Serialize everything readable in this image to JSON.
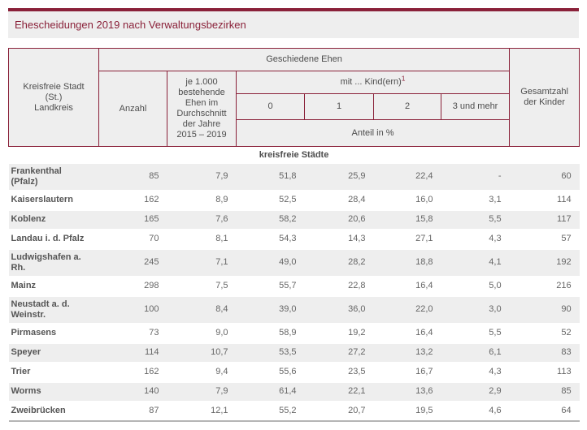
{
  "page": {
    "title": "Ehescheidungen 2019 nach Verwaltungsbezirken"
  },
  "colors": {
    "accent": "#8a2139",
    "row_alt_background": "#eeeeee",
    "header_text": "#4d4d4d",
    "body_text": "#666666"
  },
  "table": {
    "header": {
      "col_region": "Kreisfreie Stadt\n(St.)\nLandkreis",
      "group_divorced": "Geschiedene Ehen",
      "col_count": "Anzahl",
      "col_per_1000": "je 1.000\nbestehende\nEhen im\nDurchschnitt\nder Jahre\n2015 – 2019",
      "group_children_label": "mit ... Kind(ern)",
      "group_children_footnote": "1",
      "child_cols": [
        "0",
        "1",
        "2",
        "3 und mehr"
      ],
      "share_label": "Anteil in %",
      "col_total_children": "Gesamtzahl\nder Kinder"
    },
    "section_label": "kreisfreie Städte",
    "rows": [
      {
        "city": "Frankenthal (Pfalz)",
        "values": [
          "85",
          "7,9",
          "51,8",
          "25,9",
          "22,4",
          "-",
          "60"
        ]
      },
      {
        "city": "Kaiserslautern",
        "values": [
          "162",
          "8,9",
          "52,5",
          "28,4",
          "16,0",
          "3,1",
          "114"
        ]
      },
      {
        "city": "Koblenz",
        "values": [
          "165",
          "7,6",
          "58,2",
          "20,6",
          "15,8",
          "5,5",
          "117"
        ]
      },
      {
        "city": "Landau i. d. Pfalz",
        "values": [
          "70",
          "8,1",
          "54,3",
          "14,3",
          "27,1",
          "4,3",
          "57"
        ]
      },
      {
        "city": "Ludwigshafen a. Rh.",
        "values": [
          "245",
          "7,1",
          "49,0",
          "28,2",
          "18,8",
          "4,1",
          "192"
        ]
      },
      {
        "city": "Mainz",
        "values": [
          "298",
          "7,5",
          "55,7",
          "22,8",
          "16,4",
          "5,0",
          "216"
        ]
      },
      {
        "city": "Neustadt a. d. Weinstr.",
        "values": [
          "100",
          "8,4",
          "39,0",
          "36,0",
          "22,0",
          "3,0",
          "90"
        ]
      },
      {
        "city": "Pirmasens",
        "values": [
          "73",
          "9,0",
          "58,9",
          "19,2",
          "16,4",
          "5,5",
          "52"
        ]
      },
      {
        "city": "Speyer",
        "values": [
          "114",
          "10,7",
          "53,5",
          "27,2",
          "13,2",
          "6,1",
          "83"
        ]
      },
      {
        "city": "Trier",
        "values": [
          "162",
          "9,4",
          "55,6",
          "23,5",
          "16,7",
          "4,3",
          "113"
        ]
      },
      {
        "city": "Worms",
        "values": [
          "140",
          "7,9",
          "61,4",
          "22,1",
          "13,6",
          "2,9",
          "85"
        ]
      },
      {
        "city": "Zweibrücken",
        "values": [
          "87",
          "12,1",
          "55,2",
          "20,7",
          "19,5",
          "4,6",
          "64"
        ]
      }
    ]
  }
}
